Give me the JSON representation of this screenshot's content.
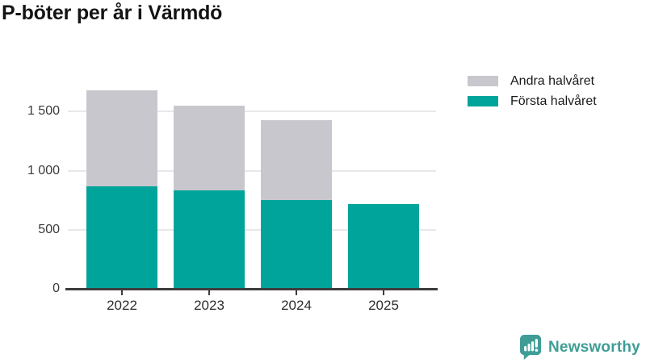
{
  "header": {
    "title": "P-böter per år i Värmdö"
  },
  "legend": {
    "items": [
      {
        "label": "Andra halvåret",
        "color": "#c9c7ce"
      },
      {
        "label": "Första halvåret",
        "color": "#00a49b"
      }
    ]
  },
  "chart_data": {
    "type": "bar",
    "stacked": true,
    "title": "P-böter per år i Värmdö",
    "categories": [
      "2022",
      "2023",
      "2024",
      "2025"
    ],
    "series": [
      {
        "name": "Första halvåret",
        "color": "#00a49b",
        "values": [
          870,
          830,
          750,
          715
        ]
      },
      {
        "name": "Andra halvåret",
        "color": "#c9c7ce",
        "values": [
          810,
          720,
          680,
          0
        ]
      }
    ],
    "totals": [
      1680,
      1550,
      1430,
      715
    ],
    "xlabel": "",
    "ylabel": "",
    "ylim": [
      0,
      1700
    ],
    "yticks": [
      {
        "value": 0,
        "label": "0"
      },
      {
        "value": 500,
        "label": "500"
      },
      {
        "value": 1000,
        "label": "1 000"
      },
      {
        "value": 1500,
        "label": "1 500"
      }
    ],
    "grid": true,
    "legend_position": "top-right"
  },
  "footer": {
    "brand": "Newsworthy",
    "brand_color": "#3f9d96"
  },
  "colors": {
    "first_half": "#00a49b",
    "second_half": "#c9c7ce",
    "axis_line": "#3d3d3d",
    "gridline": "#e8e7ea",
    "background": "#ffffff"
  }
}
